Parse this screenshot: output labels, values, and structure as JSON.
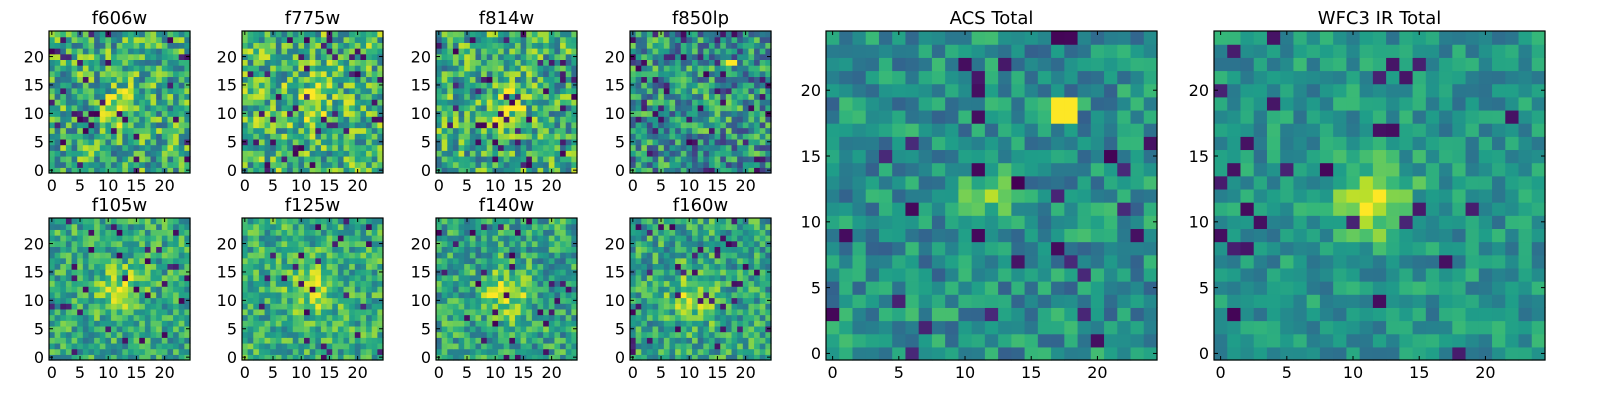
{
  "figure": {
    "colormap": "viridis",
    "colormap_stops": [
      "#440154",
      "#482878",
      "#3e4989",
      "#31688e",
      "#26828e",
      "#1f9e89",
      "#35b779",
      "#6ece58",
      "#b5de2b",
      "#fde725"
    ],
    "background": "#ffffff",
    "axis_color": "#000000"
  },
  "chart_data": [
    {
      "type": "heatmap",
      "title": "f606w",
      "grid_size": 25,
      "xlim": [
        0,
        24
      ],
      "ylim": [
        0,
        24
      ],
      "xticks": [
        0,
        5,
        10,
        15,
        20
      ],
      "yticks": [
        0,
        5,
        10,
        15,
        20
      ],
      "blob": {
        "x": 12,
        "y": 11,
        "sigma": 2.2,
        "amp": 0.28
      },
      "bright_spots": [],
      "seed": 11,
      "noise": 0.3,
      "base": 0.62,
      "dark_frac": 0.06
    },
    {
      "type": "heatmap",
      "title": "f775w",
      "grid_size": 25,
      "xlim": [
        0,
        24
      ],
      "ylim": [
        0,
        24
      ],
      "xticks": [
        0,
        5,
        10,
        15,
        20
      ],
      "yticks": [
        0,
        5,
        10,
        15,
        20
      ],
      "blob": {
        "x": 12,
        "y": 12,
        "sigma": 2.5,
        "amp": 0.2
      },
      "bright_spots": [],
      "seed": 23,
      "noise": 0.3,
      "base": 0.65,
      "dark_frac": 0.06
    },
    {
      "type": "heatmap",
      "title": "f814w",
      "grid_size": 25,
      "xlim": [
        0,
        24
      ],
      "ylim": [
        0,
        24
      ],
      "xticks": [
        0,
        5,
        10,
        15,
        20
      ],
      "yticks": [
        0,
        5,
        10,
        15,
        20
      ],
      "blob": {
        "x": 12,
        "y": 11,
        "sigma": 2.3,
        "amp": 0.28
      },
      "bright_spots": [],
      "seed": 37,
      "noise": 0.3,
      "base": 0.62,
      "dark_frac": 0.06
    },
    {
      "type": "heatmap",
      "title": "f850lp",
      "grid_size": 25,
      "xlim": [
        0,
        24
      ],
      "ylim": [
        0,
        24
      ],
      "xticks": [
        0,
        5,
        10,
        15,
        20
      ],
      "yticks": [
        0,
        5,
        10,
        15,
        20
      ],
      "blob": {
        "x": 12,
        "y": 11,
        "sigma": 2,
        "amp": 0.12
      },
      "bright_spots": [
        {
          "x": 17,
          "y": 19
        },
        {
          "x": 18,
          "y": 19
        }
      ],
      "seed": 41,
      "noise": 0.32,
      "base": 0.5,
      "dark_frac": 0.08
    },
    {
      "type": "heatmap",
      "title": "f105w",
      "grid_size": 25,
      "xlim": [
        0,
        24
      ],
      "ylim": [
        0,
        24
      ],
      "xticks": [
        0,
        5,
        10,
        15,
        20
      ],
      "yticks": [
        0,
        5,
        10,
        15,
        20
      ],
      "blob": {
        "x": 12,
        "y": 12,
        "sigma": 3,
        "amp": 0.28
      },
      "bright_spots": [],
      "seed": 53,
      "noise": 0.22,
      "base": 0.6,
      "dark_frac": 0.04
    },
    {
      "type": "heatmap",
      "title": "f125w",
      "grid_size": 25,
      "xlim": [
        0,
        24
      ],
      "ylim": [
        0,
        24
      ],
      "xticks": [
        0,
        5,
        10,
        15,
        20
      ],
      "yticks": [
        0,
        5,
        10,
        15,
        20
      ],
      "blob": {
        "x": 12,
        "y": 12,
        "sigma": 3,
        "amp": 0.25
      },
      "bright_spots": [],
      "seed": 67,
      "noise": 0.22,
      "base": 0.62,
      "dark_frac": 0.04
    },
    {
      "type": "heatmap",
      "title": "f140w",
      "grid_size": 25,
      "xlim": [
        0,
        24
      ],
      "ylim": [
        0,
        24
      ],
      "xticks": [
        0,
        5,
        10,
        15,
        20
      ],
      "yticks": [
        0,
        5,
        10,
        15,
        20
      ],
      "blob": {
        "x": 12,
        "y": 11,
        "sigma": 3,
        "amp": 0.3
      },
      "bright_spots": [],
      "seed": 71,
      "noise": 0.24,
      "base": 0.58,
      "dark_frac": 0.05
    },
    {
      "type": "heatmap",
      "title": "f160w",
      "grid_size": 25,
      "xlim": [
        0,
        24
      ],
      "ylim": [
        0,
        24
      ],
      "xticks": [
        0,
        5,
        10,
        15,
        20
      ],
      "yticks": [
        0,
        5,
        10,
        15,
        20
      ],
      "blob": {
        "x": 11,
        "y": 11,
        "sigma": 3,
        "amp": 0.3
      },
      "bright_spots": [],
      "seed": 83,
      "noise": 0.24,
      "base": 0.58,
      "dark_frac": 0.05
    },
    {
      "type": "heatmap",
      "title": "ACS Total",
      "grid_size": 25,
      "xlim": [
        0,
        24
      ],
      "ylim": [
        0,
        24
      ],
      "xticks": [
        0,
        5,
        10,
        15,
        20
      ],
      "yticks": [
        0,
        5,
        10,
        15,
        20
      ],
      "blob": {
        "x": 11.5,
        "y": 12,
        "sigma": 1.5,
        "amp": 0.35
      },
      "bright_spots": [
        {
          "x": 17,
          "y": 18
        },
        {
          "x": 18,
          "y": 18
        },
        {
          "x": 17,
          "y": 19
        },
        {
          "x": 18,
          "y": 19
        }
      ],
      "seed": 97,
      "noise": 0.2,
      "base": 0.5,
      "dark_frac": 0.05
    },
    {
      "type": "heatmap",
      "title": "WFC3 IR Total",
      "grid_size": 25,
      "xlim": [
        0,
        24
      ],
      "ylim": [
        0,
        24
      ],
      "xticks": [
        0,
        5,
        10,
        15,
        20
      ],
      "yticks": [
        0,
        5,
        10,
        15,
        20
      ],
      "blob": {
        "x": 11.5,
        "y": 11.5,
        "sigma": 2.2,
        "amp": 0.38
      },
      "bright_spots": [],
      "seed": 101,
      "noise": 0.16,
      "base": 0.52,
      "dark_frac": 0.05
    }
  ]
}
